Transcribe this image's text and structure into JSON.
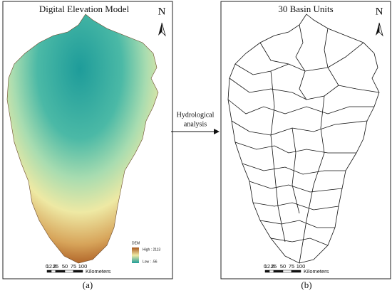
{
  "panels": [
    {
      "title": "Digital Elevation Model",
      "north": "N",
      "caption": "(a)",
      "legend": {
        "title": "DEM",
        "high_label": "High : 2113",
        "low_label": "Low : -56"
      },
      "scale_labels": [
        "0",
        "12.5",
        "25",
        "50",
        "75",
        "100"
      ],
      "scale_unit": "Kilometers"
    },
    {
      "title": "30 Basin Units",
      "north": "N",
      "caption": "(b)",
      "scale_labels": [
        "0",
        "12.5",
        "25",
        "50",
        "75",
        "100"
      ],
      "scale_unit": "Kilometers"
    }
  ],
  "arrow_label": [
    "Hydrological",
    "analysis"
  ]
}
